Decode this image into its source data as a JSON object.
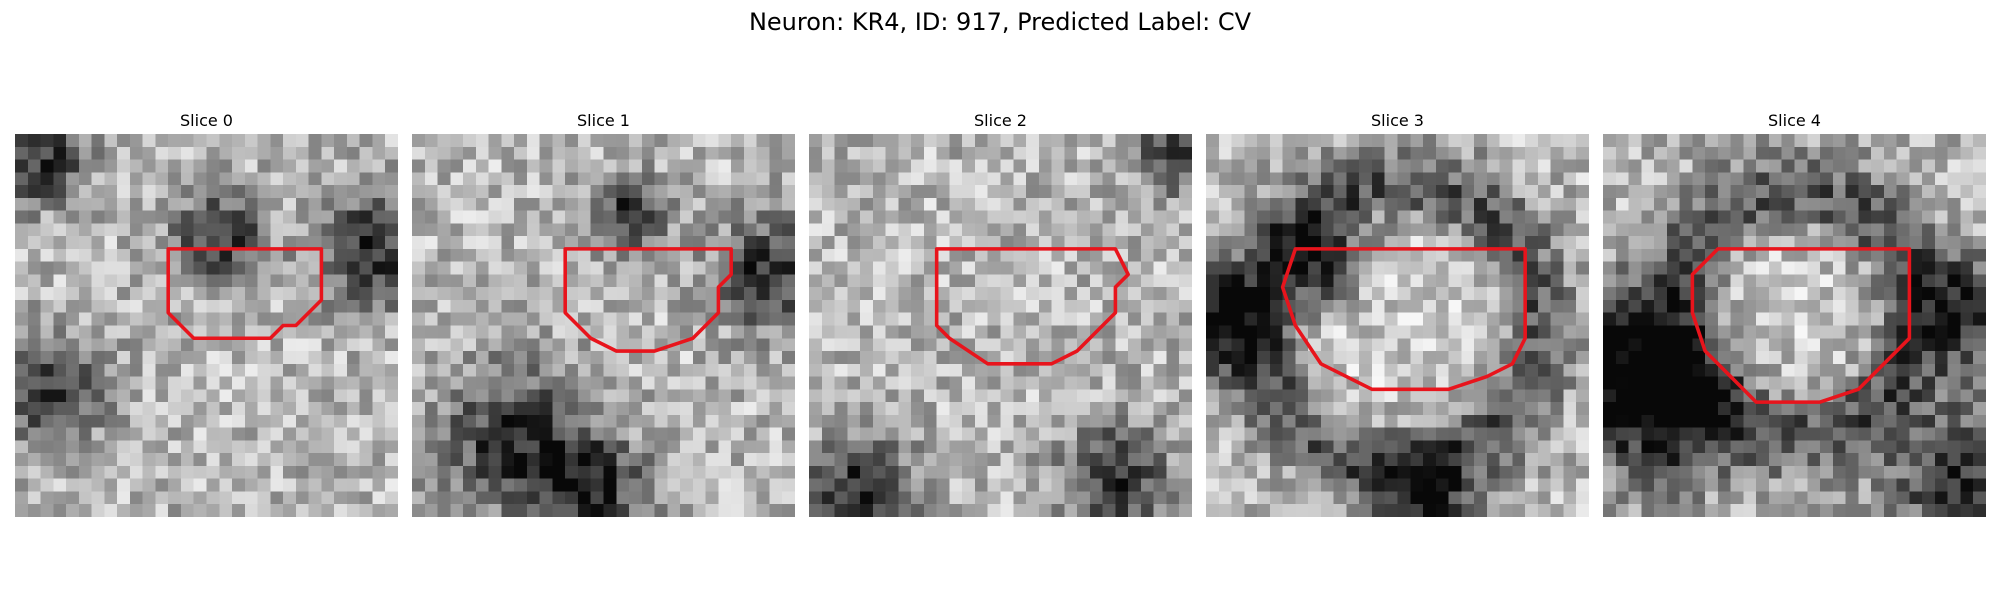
{
  "figure": {
    "title": "Neuron: KR4, ID: 917, Predicted Label: CV"
  },
  "panels": [
    {
      "title": "Slice 0",
      "seed": 11,
      "dark_spots": [
        [
          2,
          2,
          2.5
        ],
        [
          28,
          9,
          3
        ],
        [
          16,
          8,
          2.5
        ],
        [
          3,
          20,
          3
        ]
      ],
      "ring": null,
      "contour": [
        [
          12,
          9
        ],
        [
          24,
          9
        ],
        [
          24,
          13
        ],
        [
          22,
          15
        ],
        [
          21,
          15
        ],
        [
          20,
          16
        ],
        [
          14,
          16
        ],
        [
          12,
          14
        ]
      ]
    },
    {
      "title": "Slice 1",
      "seed": 23,
      "dark_spots": [
        [
          28,
          11,
          3
        ],
        [
          17,
          6,
          2
        ],
        [
          8,
          24,
          4
        ],
        [
          14,
          28,
          3
        ]
      ],
      "ring": null,
      "contour": [
        [
          12,
          9
        ],
        [
          25,
          9
        ],
        [
          25,
          11
        ],
        [
          24,
          12
        ],
        [
          24,
          14
        ],
        [
          22,
          16
        ],
        [
          19,
          17
        ],
        [
          18,
          17
        ],
        [
          16,
          17
        ],
        [
          14,
          16
        ],
        [
          13,
          15
        ],
        [
          12,
          14
        ],
        [
          12,
          12
        ]
      ]
    },
    {
      "title": "Slice 2",
      "seed": 37,
      "dark_spots": [
        [
          29,
          1,
          2.5
        ],
        [
          24,
          27,
          3
        ],
        [
          4,
          28,
          3
        ]
      ],
      "ring": null,
      "contour": [
        [
          10,
          9
        ],
        [
          24,
          9
        ],
        [
          25,
          11
        ],
        [
          24,
          12
        ],
        [
          24,
          14
        ],
        [
          21,
          17
        ],
        [
          19,
          18
        ],
        [
          14,
          18
        ],
        [
          11,
          16
        ],
        [
          10,
          15
        ],
        [
          10,
          11
        ]
      ]
    },
    {
      "title": "Slice 3",
      "seed": 51,
      "dark_spots": [
        [
          1,
          15,
          3
        ],
        [
          9,
          10,
          2.5
        ],
        [
          17,
          29,
          3
        ]
      ],
      "ring": [
        15,
        15,
        11,
        2.2
      ],
      "contour": [
        [
          7,
          9
        ],
        [
          25,
          9
        ],
        [
          25,
          16
        ],
        [
          24,
          18
        ],
        [
          22,
          19
        ],
        [
          19,
          20
        ],
        [
          13,
          20
        ],
        [
          11,
          19
        ],
        [
          9,
          18
        ],
        [
          7,
          15
        ],
        [
          6,
          12
        ]
      ]
    },
    {
      "title": "Slice 4",
      "seed": 67,
      "dark_spots": [
        [
          1,
          18,
          4
        ],
        [
          5,
          22,
          4
        ],
        [
          28,
          27,
          4
        ],
        [
          29,
          14,
          3
        ]
      ],
      "ring": [
        15,
        14,
        9.5,
        2.4
      ],
      "contour": [
        [
          9,
          9
        ],
        [
          24,
          9
        ],
        [
          24,
          16
        ],
        [
          22,
          18
        ],
        [
          20,
          20
        ],
        [
          17,
          21
        ],
        [
          12,
          21
        ],
        [
          10,
          19
        ],
        [
          8,
          17
        ],
        [
          7,
          14
        ],
        [
          7,
          11
        ]
      ]
    }
  ]
}
